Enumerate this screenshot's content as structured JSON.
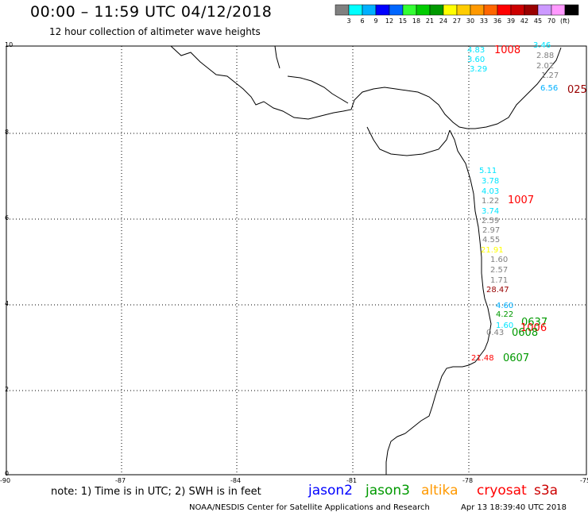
{
  "title": "00:00 – 11:59 UTC 04/12/2018",
  "subtitle": "12 hour collection of altimeter wave heights",
  "legend": {
    "colors": [
      "#808080",
      "#00ffff",
      "#00b0ff",
      "#0000ff",
      "#0066ff",
      "#33ff33",
      "#00cc00",
      "#009900",
      "#ffff00",
      "#ffcc00",
      "#ff9900",
      "#ff6600",
      "#ff0000",
      "#cc0000",
      "#990000",
      "#cc99ff",
      "#ff99ff",
      "#000000"
    ],
    "labels": [
      "3",
      "6",
      "9",
      "12",
      "15",
      "18",
      "21",
      "24",
      "27",
      "30",
      "33",
      "36",
      "39",
      "42",
      "45",
      "70",
      "(ft)"
    ]
  },
  "axis": {
    "y_ticks": [
      "10",
      "8",
      "6",
      "4",
      "2",
      "0"
    ],
    "x_ticks": [
      "-90",
      "-87",
      "-84",
      "-81",
      "-78",
      "-75"
    ]
  },
  "wave_labels": [
    {
      "text": "4.83",
      "color": "#00e5ff"
    },
    {
      "text": "3.60",
      "color": "#00e5ff"
    },
    {
      "text": "3.29",
      "color": "#00e5ff"
    },
    {
      "text": "1008",
      "color": "#ff0000"
    },
    {
      "text": "3.46",
      "color": "#00e5ff"
    },
    {
      "text": "2.88",
      "color": "#808080"
    },
    {
      "text": "2.02",
      "color": "#808080"
    },
    {
      "text": "1.27",
      "color": "#808080"
    },
    {
      "text": "6.56",
      "color": "#00b0ff"
    },
    {
      "text": "025",
      "color": "#990000"
    },
    {
      "text": "5.11",
      "color": "#00e5ff"
    },
    {
      "text": "3.78",
      "color": "#00e5ff"
    },
    {
      "text": "4.03",
      "color": "#00e5ff"
    },
    {
      "text": "1.22",
      "color": "#808080"
    },
    {
      "text": "1007",
      "color": "#ff0000"
    },
    {
      "text": "3.74",
      "color": "#00e5ff"
    },
    {
      "text": "2.59",
      "color": "#808080"
    },
    {
      "text": "2.97",
      "color": "#808080"
    },
    {
      "text": "4.55",
      "color": "#808080"
    },
    {
      "text": "21.91",
      "color": "#ffff00"
    },
    {
      "text": "1.60",
      "color": "#808080"
    },
    {
      "text": "2.57",
      "color": "#808080"
    },
    {
      "text": "1.71",
      "color": "#808080"
    },
    {
      "text": "28.47",
      "color": "#990000"
    },
    {
      "text": "4.60",
      "color": "#00b0ff"
    },
    {
      "text": "4.22",
      "color": "#009900"
    },
    {
      "text": "0637",
      "color": "#009900"
    },
    {
      "text": "1.60",
      "color": "#00e5ff"
    },
    {
      "text": "1006",
      "color": "#ff0000"
    },
    {
      "text": "0.43",
      "color": "#808080"
    },
    {
      "text": "0608",
      "color": "#009900"
    },
    {
      "text": "21.48",
      "color": "#ff0000"
    },
    {
      "text": "0607",
      "color": "#009900"
    }
  ],
  "note": "note:  1) Time is in UTC;  2) SWH is in feet",
  "satellites": [
    {
      "text": "jason2",
      "color": "#0000ff"
    },
    {
      "text": "jason3",
      "color": "#009900"
    },
    {
      "text": "altika",
      "color": "#ff9900"
    },
    {
      "text": "cryosat",
      "color": "#ff0000"
    },
    {
      "text": "s3a",
      "color": "#cc0000"
    }
  ],
  "credit": "NOAA/NESDIS Center for Satellite Applications and Research",
  "timestamp": "Apr 13 18:39:40 UTC 2018"
}
